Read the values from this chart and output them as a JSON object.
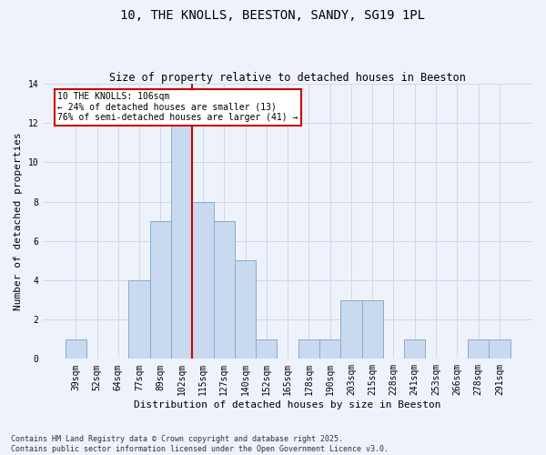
{
  "title": "10, THE KNOLLS, BEESTON, SANDY, SG19 1PL",
  "subtitle": "Size of property relative to detached houses in Beeston",
  "xlabel": "Distribution of detached houses by size in Beeston",
  "ylabel": "Number of detached properties",
  "categories": [
    "39sqm",
    "52sqm",
    "64sqm",
    "77sqm",
    "89sqm",
    "102sqm",
    "115sqm",
    "127sqm",
    "140sqm",
    "152sqm",
    "165sqm",
    "178sqm",
    "190sqm",
    "203sqm",
    "215sqm",
    "228sqm",
    "241sqm",
    "253sqm",
    "266sqm",
    "278sqm",
    "291sqm"
  ],
  "values": [
    1,
    0,
    0,
    4,
    7,
    12,
    8,
    7,
    5,
    1,
    0,
    1,
    1,
    3,
    3,
    0,
    1,
    0,
    0,
    1,
    1
  ],
  "bar_color": "#c9d9f0",
  "bar_edge_color": "#8aabcc",
  "grid_color": "#d0d8e8",
  "background_color": "#eef2fb",
  "red_line_x": 5.5,
  "annotation_text": "10 THE KNOLLS: 106sqm\n← 24% of detached houses are smaller (13)\n76% of semi-detached houses are larger (41) →",
  "annotation_box_color": "#ffffff",
  "annotation_box_edge": "#cc0000",
  "red_line_color": "#cc0000",
  "footer_text": "Contains HM Land Registry data © Crown copyright and database right 2025.\nContains public sector information licensed under the Open Government Licence v3.0.",
  "ylim": [
    0,
    14
  ],
  "yticks": [
    0,
    2,
    4,
    6,
    8,
    10,
    12,
    14
  ],
  "title_fontsize": 10,
  "subtitle_fontsize": 8.5,
  "tick_fontsize": 7,
  "ylabel_fontsize": 8,
  "xlabel_fontsize": 8,
  "annotation_fontsize": 7,
  "footer_fontsize": 6
}
